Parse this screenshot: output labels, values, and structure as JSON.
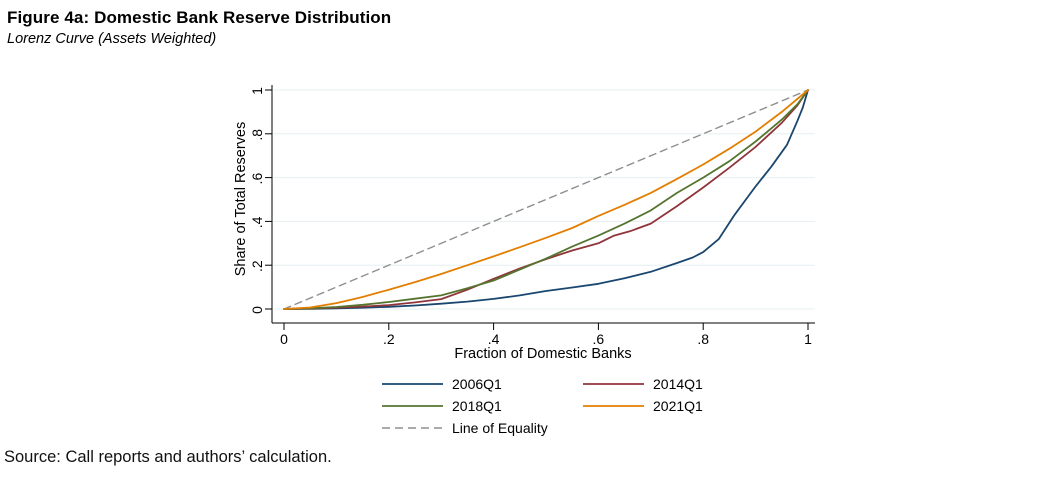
{
  "header": {
    "title": "Figure 4a: Domestic Bank Reserve Distribution",
    "subtitle": "Lorenz Curve (Assets Weighted)"
  },
  "source_note": "Source: Call reports and authors’ calculation.",
  "colors": {
    "background": "#ffffff",
    "axis": "#000000",
    "grid": "#e6eff1",
    "text": "#000000",
    "navy": "#1a476f",
    "maroon": "#90353b",
    "forest_green": "#55752f",
    "orange": "#e37e00",
    "equality_gray": "#8f8f8f"
  },
  "chart_data": {
    "type": "line",
    "title": "Figure 4a: Domestic Bank Reserve Distribution",
    "subtitle": "Lorenz Curve (Assets Weighted)",
    "xlabel": "Fraction of Domestic Banks",
    "ylabel": "Share of Total Reserves",
    "xlim": [
      0,
      1
    ],
    "ylim": [
      0,
      1
    ],
    "grid": "horizontal-only",
    "legend_position": "below-plot-two-columns",
    "xticks": {
      "values": [
        0,
        0.2,
        0.4,
        0.6,
        0.8,
        1
      ],
      "labels": [
        "0",
        ".2",
        ".4",
        ".6",
        ".8",
        "1"
      ]
    },
    "yticks": {
      "values": [
        0,
        0.2,
        0.4,
        0.6,
        0.8,
        1
      ],
      "labels": [
        "0",
        ".2",
        ".4",
        ".6",
        ".8",
        "1"
      ]
    },
    "series": [
      {
        "name": "2006Q1",
        "color": "#1a476f",
        "style": "solid",
        "points": [
          [
            0,
            0
          ],
          [
            0.05,
            0.001
          ],
          [
            0.1,
            0.003
          ],
          [
            0.15,
            0.006
          ],
          [
            0.2,
            0.01
          ],
          [
            0.25,
            0.016
          ],
          [
            0.3,
            0.024
          ],
          [
            0.35,
            0.034
          ],
          [
            0.4,
            0.046
          ],
          [
            0.45,
            0.062
          ],
          [
            0.5,
            0.082
          ],
          [
            0.55,
            0.098
          ],
          [
            0.6,
            0.115
          ],
          [
            0.65,
            0.14
          ],
          [
            0.7,
            0.17
          ],
          [
            0.75,
            0.21
          ],
          [
            0.78,
            0.235
          ],
          [
            0.8,
            0.26
          ],
          [
            0.83,
            0.32
          ],
          [
            0.86,
            0.43
          ],
          [
            0.9,
            0.56
          ],
          [
            0.93,
            0.65
          ],
          [
            0.96,
            0.75
          ],
          [
            0.98,
            0.86
          ],
          [
            0.99,
            0.92
          ],
          [
            1,
            1
          ]
        ]
      },
      {
        "name": "2014Q1",
        "color": "#90353b",
        "style": "solid",
        "points": [
          [
            0,
            0
          ],
          [
            0.05,
            0.002
          ],
          [
            0.1,
            0.006
          ],
          [
            0.15,
            0.011
          ],
          [
            0.2,
            0.018
          ],
          [
            0.25,
            0.03
          ],
          [
            0.3,
            0.045
          ],
          [
            0.35,
            0.088
          ],
          [
            0.4,
            0.138
          ],
          [
            0.45,
            0.185
          ],
          [
            0.5,
            0.228
          ],
          [
            0.55,
            0.267
          ],
          [
            0.6,
            0.3
          ],
          [
            0.63,
            0.335
          ],
          [
            0.66,
            0.355
          ],
          [
            0.7,
            0.39
          ],
          [
            0.75,
            0.47
          ],
          [
            0.8,
            0.555
          ],
          [
            0.85,
            0.645
          ],
          [
            0.9,
            0.74
          ],
          [
            0.95,
            0.85
          ],
          [
            0.98,
            0.93
          ],
          [
            1,
            1
          ]
        ]
      },
      {
        "name": "2018Q1",
        "color": "#55752f",
        "style": "solid",
        "points": [
          [
            0,
            0
          ],
          [
            0.05,
            0.003
          ],
          [
            0.1,
            0.009
          ],
          [
            0.15,
            0.019
          ],
          [
            0.2,
            0.032
          ],
          [
            0.25,
            0.047
          ],
          [
            0.3,
            0.062
          ],
          [
            0.35,
            0.095
          ],
          [
            0.4,
            0.13
          ],
          [
            0.45,
            0.18
          ],
          [
            0.5,
            0.23
          ],
          [
            0.55,
            0.285
          ],
          [
            0.6,
            0.335
          ],
          [
            0.65,
            0.39
          ],
          [
            0.7,
            0.45
          ],
          [
            0.75,
            0.53
          ],
          [
            0.8,
            0.6
          ],
          [
            0.85,
            0.675
          ],
          [
            0.9,
            0.765
          ],
          [
            0.95,
            0.865
          ],
          [
            0.98,
            0.935
          ],
          [
            1,
            1
          ]
        ]
      },
      {
        "name": "2021Q1",
        "color": "#e37e00",
        "style": "solid",
        "points": [
          [
            0,
            0
          ],
          [
            0.05,
            0.007
          ],
          [
            0.1,
            0.027
          ],
          [
            0.15,
            0.055
          ],
          [
            0.2,
            0.088
          ],
          [
            0.25,
            0.123
          ],
          [
            0.3,
            0.16
          ],
          [
            0.35,
            0.2
          ],
          [
            0.4,
            0.24
          ],
          [
            0.45,
            0.282
          ],
          [
            0.5,
            0.325
          ],
          [
            0.55,
            0.37
          ],
          [
            0.6,
            0.425
          ],
          [
            0.65,
            0.476
          ],
          [
            0.7,
            0.53
          ],
          [
            0.75,
            0.594
          ],
          [
            0.8,
            0.66
          ],
          [
            0.85,
            0.732
          ],
          [
            0.9,
            0.81
          ],
          [
            0.95,
            0.9
          ],
          [
            1,
            1
          ]
        ]
      },
      {
        "name": "Line of Equality",
        "color": "#8f8f8f",
        "style": "dashed",
        "points": [
          [
            0,
            0
          ],
          [
            1,
            1
          ]
        ]
      }
    ]
  }
}
